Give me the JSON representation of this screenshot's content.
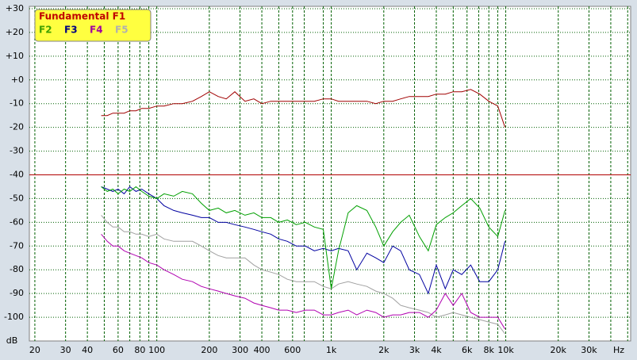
{
  "chart_data": {
    "type": "line",
    "x_axis_label": "Hz",
    "y_axis_label": "dB",
    "log_x": true,
    "grid": true,
    "legend": "upper left",
    "xlim": [
      18.6,
      52000
    ],
    "ylim": [
      -110,
      31
    ],
    "xticks": [
      20,
      30,
      40,
      60,
      80,
      100,
      200,
      300,
      400,
      600,
      {
        "value": 1000,
        "label": "1k"
      },
      {
        "value": 2000,
        "label": "2k"
      },
      {
        "value": 3000,
        "label": "3k"
      },
      {
        "value": 4000,
        "label": "4k"
      },
      {
        "value": 6000,
        "label": "6k"
      },
      {
        "value": 8000,
        "label": "8k"
      },
      {
        "value": 10000,
        "label": "10k"
      },
      {
        "value": 20000,
        "label": "20k"
      },
      {
        "value": 30000,
        "label": "30k"
      }
    ],
    "x_minor_grid": [
      50,
      70,
      90,
      500,
      700,
      900,
      5000,
      7000,
      9000,
      40000,
      50000
    ],
    "yticks": [
      {
        "value": 30,
        "label": "+30"
      },
      {
        "value": 20,
        "label": "+20"
      },
      {
        "value": 10,
        "label": "+10"
      },
      {
        "value": 0,
        "label": "+0"
      },
      -10,
      -20,
      -30,
      -40,
      -50,
      -60,
      -70,
      -80,
      -90,
      -100
    ],
    "reference_line": {
      "value": -40,
      "color": "#b00000"
    },
    "x": [
      48,
      52,
      56,
      60,
      65,
      70,
      76,
      82,
      90,
      100,
      110,
      125,
      140,
      160,
      180,
      200,
      225,
      250,
      280,
      320,
      360,
      400,
      450,
      500,
      560,
      630,
      710,
      800,
      900,
      1000,
      1100,
      1250,
      1400,
      1600,
      1800,
      2000,
      2250,
      2500,
      2800,
      3200,
      3600,
      4000,
      4500,
      5000,
      5600,
      6300,
      7100,
      8000,
      9000,
      9900
    ],
    "series": [
      {
        "name": "Fundamental F1",
        "color": "#a00000",
        "legend_color": "#c00000",
        "values": [
          -15,
          -15,
          -14,
          -14,
          -14,
          -13,
          -13,
          -12,
          -12,
          -11,
          -11,
          -10,
          -10,
          -9,
          -7,
          -5,
          -7,
          -8,
          -5,
          -9,
          -8,
          -10,
          -9,
          -9,
          -9,
          -9,
          -9,
          -9,
          -8,
          -8,
          -9,
          -9,
          -9,
          -9,
          -10,
          -9,
          -9,
          -8,
          -7,
          -7,
          -7,
          -6,
          -6,
          -5,
          -5,
          -4,
          -6,
          -9,
          -11,
          -20
        ]
      },
      {
        "name": "F2",
        "color": "#00a000",
        "legend_color": "#40a000",
        "values": [
          -45,
          -47,
          -46,
          -48,
          -46,
          -47,
          -45,
          -47,
          -49,
          -50,
          -48,
          -49,
          -47,
          -48,
          -52,
          -55,
          -54,
          -56,
          -55,
          -57,
          -56,
          -58,
          -58,
          -60,
          -59,
          -61,
          -60,
          -62,
          -63,
          -88,
          -72,
          -56,
          -53,
          -55,
          -62,
          -70,
          -64,
          -60,
          -57,
          -66,
          -72,
          -61,
          -58,
          -56,
          -53,
          -50,
          -54,
          -62,
          -66,
          -55
        ]
      },
      {
        "name": "F3",
        "color": "#0000a0",
        "legend_color": "#000080",
        "values": [
          -45,
          -46,
          -47,
          -46,
          -48,
          -45,
          -47,
          -46,
          -48,
          -50,
          -53,
          -55,
          -56,
          -57,
          -58,
          -58,
          -60,
          -60,
          -61,
          -62,
          -63,
          -64,
          -65,
          -67,
          -68,
          -70,
          -70,
          -72,
          -71,
          -72,
          -71,
          -72,
          -80,
          -73,
          -75,
          -77,
          -70,
          -72,
          -80,
          -82,
          -90,
          -78,
          -88,
          -80,
          -82,
          -78,
          -85,
          -85,
          -80,
          -68
        ]
      },
      {
        "name": "F4",
        "color": "#b000b0",
        "legend_color": "#a000a0",
        "values": [
          -65,
          -68,
          -70,
          -70,
          -72,
          -73,
          -74,
          -75,
          -77,
          -78,
          -80,
          -82,
          -84,
          -85,
          -87,
          -88,
          -89,
          -90,
          -91,
          -92,
          -94,
          -95,
          -96,
          -97,
          -97,
          -98,
          -97,
          -97,
          -99,
          -99,
          -98,
          -97,
          -99,
          -97,
          -98,
          -100,
          -99,
          -99,
          -98,
          -98,
          -100,
          -97,
          -90,
          -95,
          -90,
          -98,
          -100,
          -100,
          -100,
          -105
        ]
      },
      {
        "name": "F5",
        "color": "#a0a0a0",
        "legend_color": "#b0b0b0",
        "values": [
          -57,
          -60,
          -62,
          -62,
          -64,
          -64,
          -65,
          -65,
          -66,
          -65,
          -67,
          -68,
          -68,
          -68,
          -70,
          -72,
          -74,
          -75,
          -75,
          -75,
          -78,
          -80,
          -81,
          -82,
          -84,
          -85,
          -85,
          -85,
          -87,
          -88,
          -86,
          -85,
          -86,
          -87,
          -89,
          -90,
          -92,
          -95,
          -96,
          -97,
          -98,
          -100,
          -99,
          -98,
          -99,
          -100,
          -101,
          -102,
          -103,
          -107
        ]
      }
    ]
  }
}
